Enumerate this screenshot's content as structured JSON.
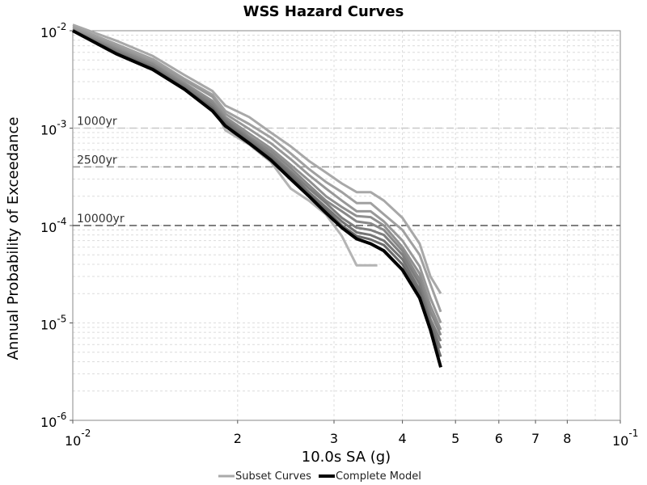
{
  "chart_data": {
    "type": "line",
    "title": "WSS Hazard Curves",
    "xlabel": "10.0s SA (g)",
    "ylabel": "Annual Probability of Exceedance",
    "x_scale": "log",
    "y_scale": "log",
    "xlim": [
      0.01,
      0.1
    ],
    "ylim": [
      1e-06,
      0.01
    ],
    "grid": true,
    "legend_position": "bottom",
    "x_ticks": [
      {
        "base": "10",
        "exp": "-2",
        "value": 0.01
      },
      {
        "label": "2",
        "value": 0.02
      },
      {
        "label": "3",
        "value": 0.03
      },
      {
        "label": "4",
        "value": 0.04
      },
      {
        "label": "5",
        "value": 0.05
      },
      {
        "label": "6",
        "value": 0.06
      },
      {
        "label": "7",
        "value": 0.07
      },
      {
        "label": "8",
        "value": 0.08
      },
      {
        "base": "10",
        "exp": "-1",
        "value": 0.1
      }
    ],
    "y_ticks": [
      {
        "base": "10",
        "exp": "-2",
        "value": 0.01
      },
      {
        "base": "10",
        "exp": "-3",
        "value": 0.001
      },
      {
        "base": "10",
        "exp": "-4",
        "value": 0.0001
      },
      {
        "base": "10",
        "exp": "-5",
        "value": 1e-05
      },
      {
        "base": "10",
        "exp": "-6",
        "value": 1e-06
      }
    ],
    "reference_lines": [
      {
        "label": "1000yr",
        "y": 0.001,
        "color": "#c8c8c8"
      },
      {
        "label": "2500yr",
        "y": 0.0004,
        "color": "#999999"
      },
      {
        "label": "10000yr",
        "y": 0.0001,
        "color": "#555555"
      }
    ],
    "legend": [
      {
        "label": "Subset Curves",
        "color": "#aaaaaa"
      },
      {
        "label": "Complete Model",
        "color": "#000000"
      }
    ],
    "series": [
      {
        "group": "subset",
        "color": "#b4b4b4",
        "x": [
          0.01,
          0.012,
          0.014,
          0.016,
          0.018,
          0.019,
          0.021,
          0.023,
          0.025,
          0.027,
          0.029,
          0.031,
          0.033,
          0.034,
          0.035,
          0.036
        ],
        "y": [
          0.0101,
          0.0062,
          0.0043,
          0.0029,
          0.00175,
          0.00095,
          0.00068,
          0.00045,
          0.00024,
          0.00018,
          0.00013,
          7.8e-05,
          3.9e-05,
          3.9e-05,
          3.9e-05,
          3.9e-05
        ]
      },
      {
        "group": "subset",
        "color": "#a8a8a8",
        "x": [
          0.01,
          0.012,
          0.014,
          0.016,
          0.018,
          0.019,
          0.021,
          0.023,
          0.025,
          0.027,
          0.029,
          0.031,
          0.033,
          0.035,
          0.037,
          0.04,
          0.043,
          0.045,
          0.047
        ],
        "y": [
          0.0115,
          0.0079,
          0.0055,
          0.0035,
          0.0024,
          0.0017,
          0.0013,
          0.0009,
          0.00065,
          0.00046,
          0.00035,
          0.00027,
          0.00022,
          0.00022,
          0.00018,
          0.00012,
          6.5e-05,
          3e-05,
          2e-05
        ]
      },
      {
        "group": "subset",
        "color": "#a0a0a0",
        "x": [
          0.01,
          0.012,
          0.014,
          0.016,
          0.018,
          0.019,
          0.021,
          0.023,
          0.025,
          0.027,
          0.029,
          0.031,
          0.033,
          0.035,
          0.037,
          0.04,
          0.043,
          0.045,
          0.047
        ],
        "y": [
          0.011,
          0.0073,
          0.0051,
          0.0032,
          0.0022,
          0.0015,
          0.0011,
          0.0008,
          0.00055,
          0.00038,
          0.00028,
          0.00022,
          0.00017,
          0.00017,
          0.00013,
          9e-05,
          5e-05,
          2.5e-05,
          1.3e-05
        ]
      },
      {
        "group": "subset",
        "color": "#989898",
        "x": [
          0.01,
          0.012,
          0.014,
          0.016,
          0.018,
          0.019,
          0.021,
          0.023,
          0.025,
          0.027,
          0.029,
          0.031,
          0.033,
          0.035,
          0.037,
          0.04,
          0.043,
          0.045,
          0.047
        ],
        "y": [
          0.0105,
          0.0069,
          0.0048,
          0.0031,
          0.0021,
          0.0014,
          0.00098,
          0.0007,
          0.00048,
          0.00033,
          0.00024,
          0.00018,
          0.00014,
          0.00014,
          0.00011,
          7e-05,
          3.8e-05,
          1.8e-05,
          1e-05
        ]
      },
      {
        "group": "subset",
        "color": "#909090",
        "x": [
          0.01,
          0.012,
          0.014,
          0.016,
          0.018,
          0.019,
          0.021,
          0.023,
          0.025,
          0.027,
          0.029,
          0.031,
          0.033,
          0.035,
          0.037,
          0.04,
          0.043,
          0.045,
          0.047
        ],
        "y": [
          0.0102,
          0.0066,
          0.0046,
          0.0029,
          0.0019,
          0.0013,
          0.00088,
          0.00062,
          0.00042,
          0.00029,
          0.0002,
          0.000155,
          0.000125,
          0.000122,
          0.0001,
          6e-05,
          3.2e-05,
          1.5e-05,
          8.5e-06
        ]
      },
      {
        "group": "subset",
        "color": "#888888",
        "x": [
          0.01,
          0.012,
          0.014,
          0.016,
          0.018,
          0.019,
          0.021,
          0.023,
          0.025,
          0.027,
          0.029,
          0.031,
          0.033,
          0.035,
          0.037,
          0.04,
          0.043,
          0.045,
          0.047
        ],
        "y": [
          0.0101,
          0.0064,
          0.0045,
          0.0028,
          0.0018,
          0.00125,
          0.00082,
          0.00058,
          0.00039,
          0.00026,
          0.00018,
          0.00014,
          0.00011,
          0.000105,
          9e-05,
          5.5e-05,
          2.8e-05,
          1.3e-05,
          7.5e-06
        ]
      },
      {
        "group": "subset",
        "color": "#7e7e7e",
        "x": [
          0.01,
          0.012,
          0.014,
          0.016,
          0.018,
          0.019,
          0.021,
          0.023,
          0.025,
          0.027,
          0.029,
          0.031,
          0.033,
          0.035,
          0.037,
          0.04,
          0.043,
          0.045,
          0.047
        ],
        "y": [
          0.01,
          0.0062,
          0.0043,
          0.0027,
          0.0017,
          0.0012,
          0.00078,
          0.00054,
          0.00036,
          0.00024,
          0.00017,
          0.00012,
          9.5e-05,
          9e-05,
          8e-05,
          5e-05,
          2.5e-05,
          1.1e-05,
          6.5e-06
        ]
      },
      {
        "group": "subset",
        "color": "#747474",
        "x": [
          0.01,
          0.012,
          0.014,
          0.016,
          0.018,
          0.019,
          0.021,
          0.023,
          0.025,
          0.027,
          0.029,
          0.031,
          0.033,
          0.035,
          0.037,
          0.04,
          0.043,
          0.045,
          0.047
        ],
        "y": [
          0.01,
          0.006,
          0.0042,
          0.0026,
          0.0016,
          0.00115,
          0.00075,
          0.00051,
          0.00034,
          0.00022,
          0.000155,
          0.00011,
          8.5e-05,
          8e-05,
          7e-05,
          4.5e-05,
          2.2e-05,
          1e-05,
          5.5e-06
        ]
      },
      {
        "group": "subset",
        "color": "#6a6a6a",
        "x": [
          0.01,
          0.012,
          0.014,
          0.016,
          0.018,
          0.019,
          0.021,
          0.023,
          0.025,
          0.027,
          0.029,
          0.031,
          0.033,
          0.035,
          0.037,
          0.04,
          0.043,
          0.045,
          0.047
        ],
        "y": [
          0.01,
          0.0059,
          0.0041,
          0.0025,
          0.0016,
          0.0011,
          0.00072,
          0.00049,
          0.00032,
          0.00021,
          0.000145,
          0.0001,
          7.8e-05,
          7.2e-05,
          6.3e-05,
          4e-05,
          2e-05,
          9.5e-06,
          4.5e-06
        ]
      },
      {
        "group": "complete",
        "color": "#000000",
        "x": [
          0.01,
          0.012,
          0.014,
          0.016,
          0.018,
          0.019,
          0.021,
          0.023,
          0.025,
          0.027,
          0.029,
          0.031,
          0.033,
          0.035,
          0.037,
          0.04,
          0.043,
          0.045,
          0.047
        ],
        "y": [
          0.01,
          0.0058,
          0.004,
          0.0025,
          0.0015,
          0.00105,
          0.0007,
          0.00047,
          0.0003,
          0.0002,
          0.000135,
          9.5e-05,
          7.3e-05,
          6.5e-05,
          5.5e-05,
          3.5e-05,
          1.8e-05,
          8.5e-06,
          3.5e-06
        ]
      }
    ]
  }
}
